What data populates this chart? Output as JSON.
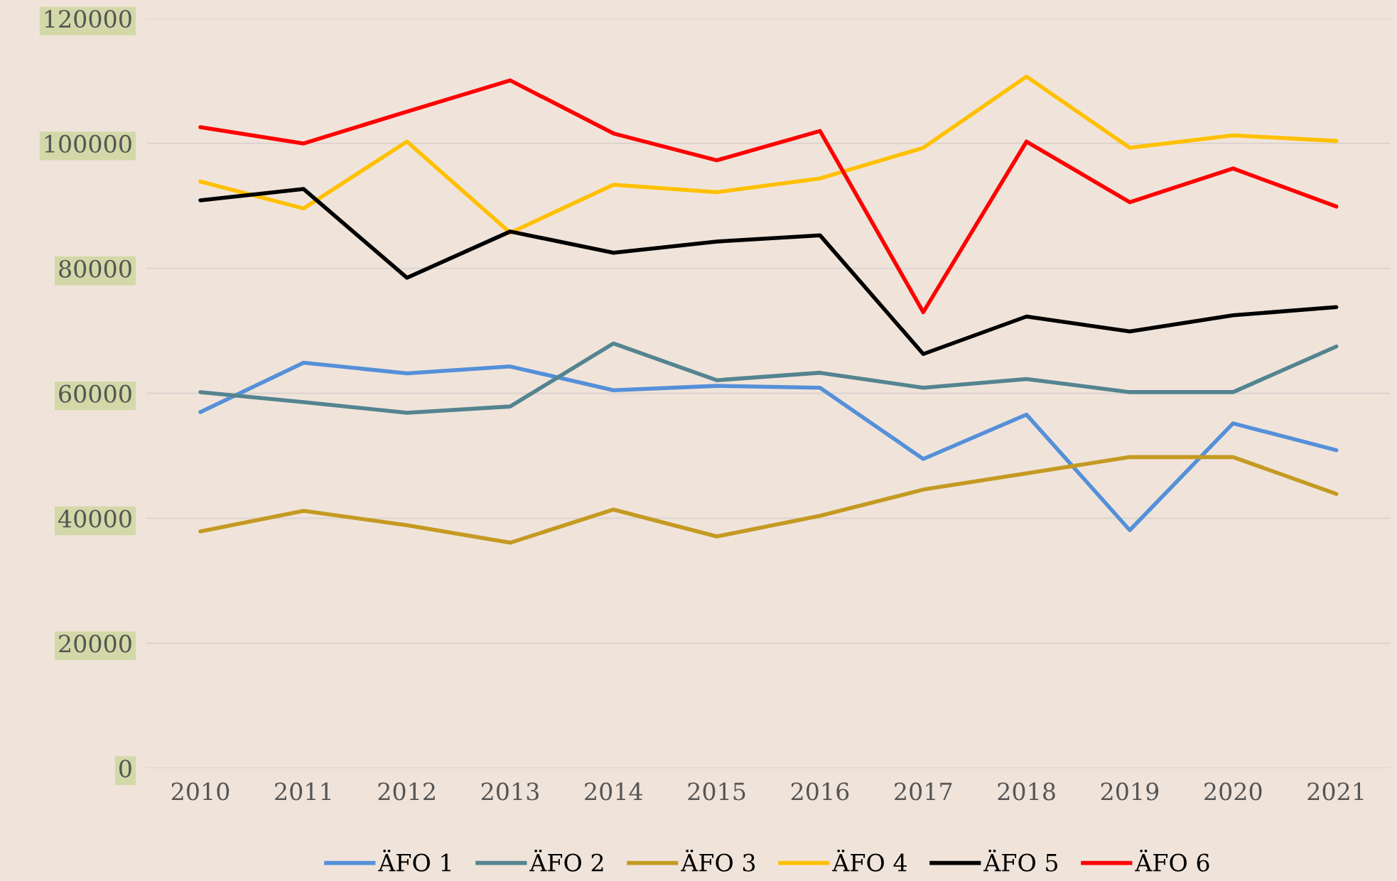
{
  "chart_data": {
    "type": "line",
    "categories": [
      "2010",
      "2011",
      "2012",
      "2013",
      "2014",
      "2015",
      "2016",
      "2017",
      "2018",
      "2019",
      "2020",
      "2021"
    ],
    "series": [
      {
        "name": "ÄFO 1",
        "color": "#5590d9",
        "values": [
          57000,
          64900,
          63200,
          64300,
          60500,
          61200,
          60900,
          49500,
          56600,
          38100,
          55200,
          50900
        ]
      },
      {
        "name": "ÄFO 2",
        "color": "#548490",
        "values": [
          60200,
          58600,
          56900,
          57900,
          68000,
          62100,
          63300,
          60900,
          62300,
          60200,
          60200,
          67500
        ]
      },
      {
        "name": "ÄFO 3",
        "color": "#c49a22",
        "values": [
          37900,
          41200,
          38900,
          36100,
          41400,
          37100,
          40400,
          44600,
          47200,
          49800,
          49800,
          43900
        ]
      },
      {
        "name": "ÄFO 4",
        "color": "#ffc000",
        "values": [
          93900,
          89600,
          100300,
          85700,
          93400,
          92200,
          94400,
          99300,
          110700,
          99300,
          101300,
          100400
        ]
      },
      {
        "name": "ÄFO 5",
        "color": "#000000",
        "values": [
          90900,
          92700,
          78500,
          85900,
          82500,
          84300,
          85300,
          66300,
          72300,
          69900,
          72500,
          73800
        ]
      },
      {
        "name": "ÄFO 6",
        "color": "#ff0000",
        "values": [
          102600,
          100000,
          105100,
          110100,
          101600,
          97300,
          102000,
          73000,
          100300,
          90600,
          96000,
          89900
        ]
      }
    ],
    "ylim": [
      0,
      120000
    ],
    "yticks": [
      0,
      20000,
      40000,
      60000,
      80000,
      100000,
      120000
    ],
    "grid": "y",
    "legend": "bottom",
    "marker": "none",
    "line_style": "solid"
  }
}
